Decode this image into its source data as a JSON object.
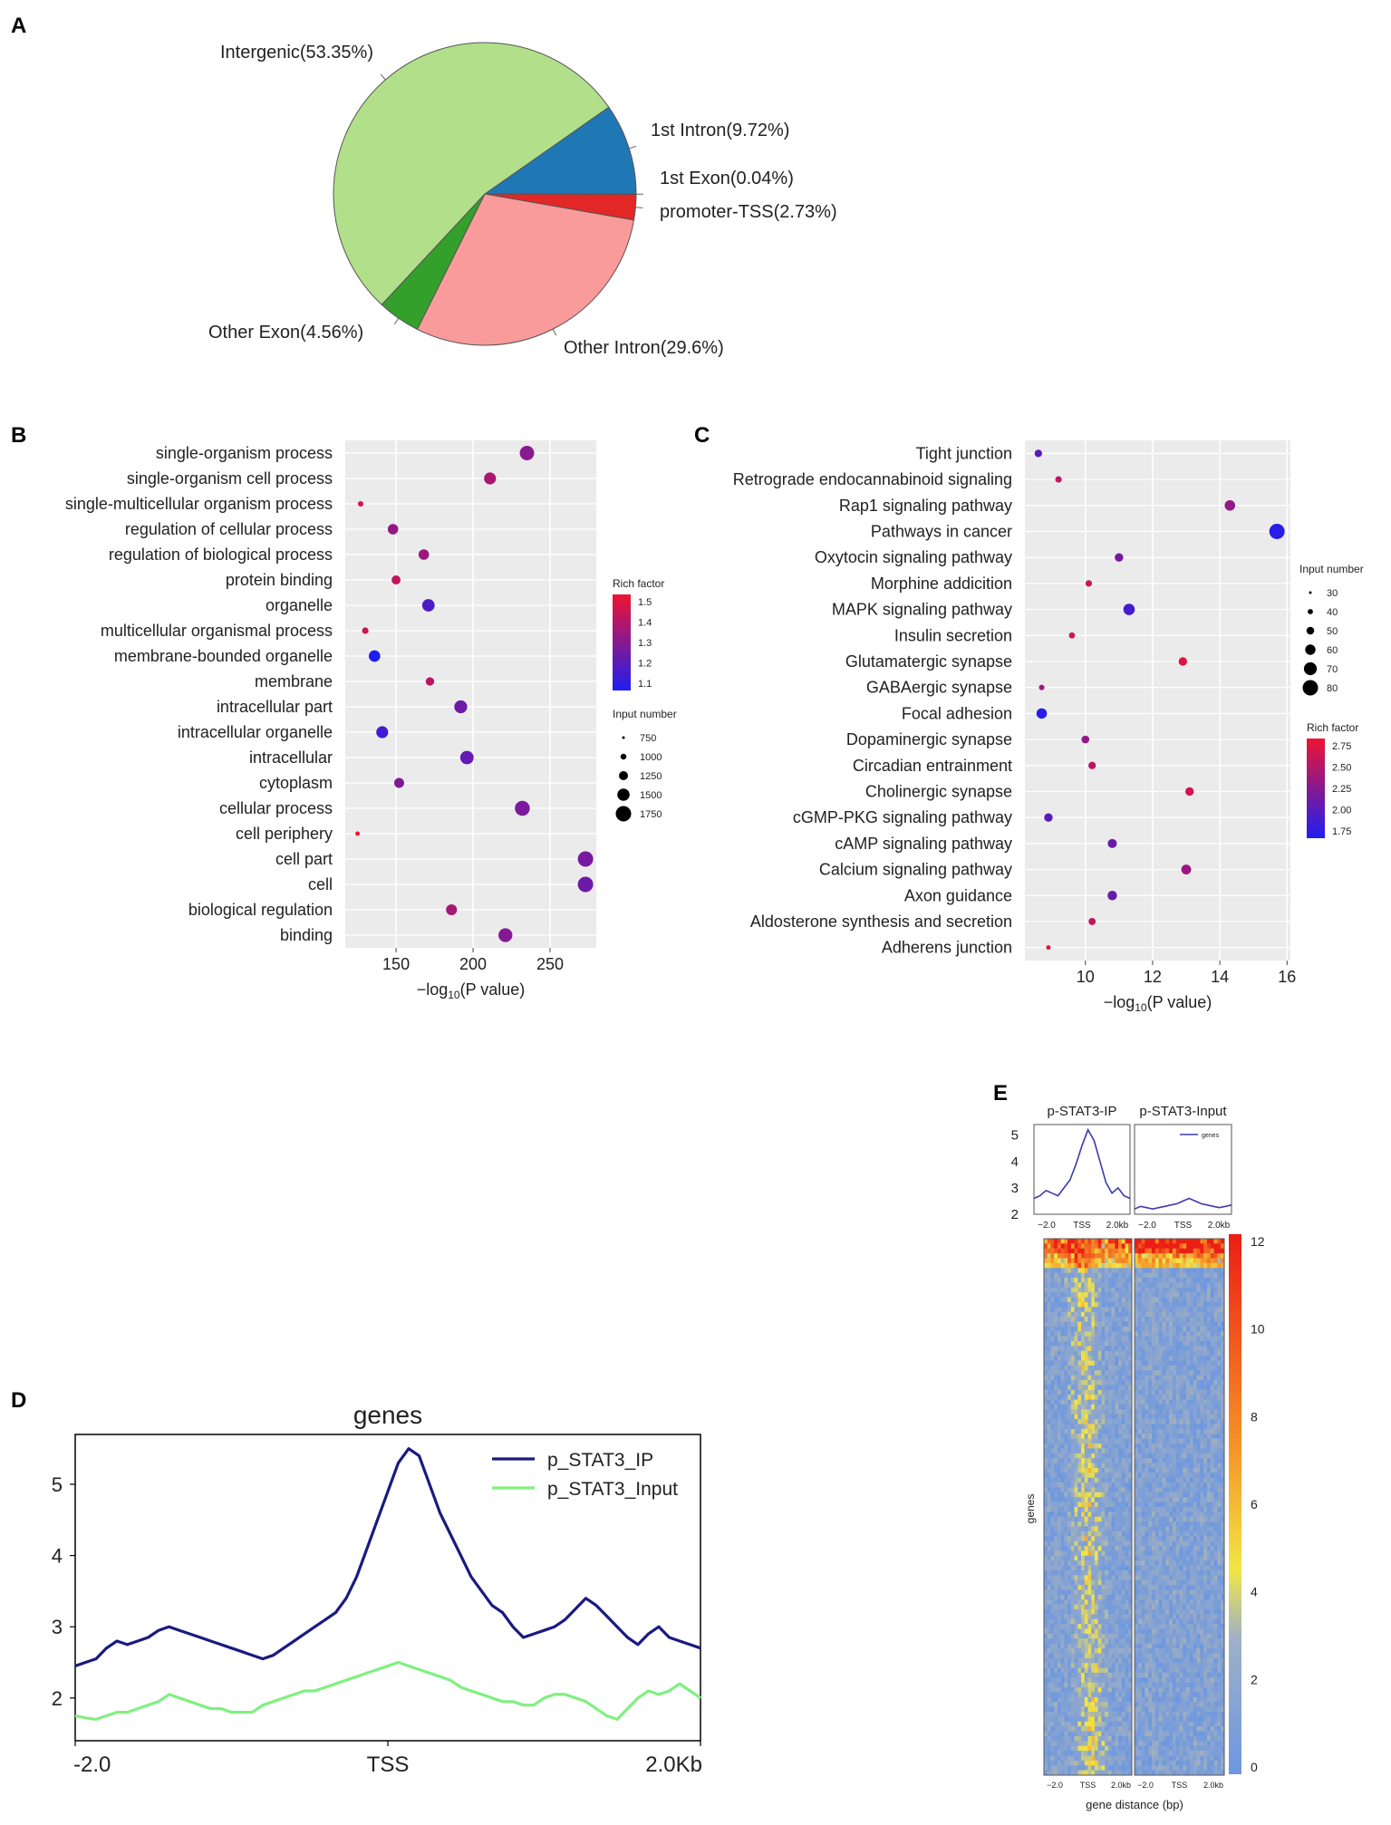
{
  "panels": {
    "a": "A",
    "b": "B",
    "c": "C",
    "d": "D",
    "e": "E"
  },
  "chart_data": [
    {
      "id": "A",
      "type": "pie",
      "title": "",
      "slices": [
        {
          "label": "1st Intron(9.72%)",
          "value": 9.72,
          "color": "#1f77b4"
        },
        {
          "label": "1st Exon(0.04%)",
          "value": 0.04,
          "color": "#9467bd"
        },
        {
          "label": "promoter-TSS(2.73%)",
          "value": 2.73,
          "color": "#e32626"
        },
        {
          "label": "Other Intron(29.6%)",
          "value": 29.6,
          "color": "#f89b9a"
        },
        {
          "label": "Other Exon(4.56%)",
          "value": 4.56,
          "color": "#33a02c"
        },
        {
          "label": "Intergenic(53.35%)",
          "value": 53.35,
          "color": "#b2df8a"
        }
      ]
    },
    {
      "id": "B",
      "type": "scatter",
      "xlabel": "−log",
      "xlabel_sub": "10",
      "xlabel_tail": "(P value)",
      "xlim": [
        117,
        280
      ],
      "xticks": [
        150,
        200,
        250
      ],
      "categories": [
        "single-organism process",
        "single-organism cell process",
        "single-multicellular organism process",
        "regulation of cellular process",
        "regulation of biological process",
        "protein binding",
        "organelle",
        "multicellular organismal process",
        "membrane-bounded organelle",
        "membrane",
        "intracellular part",
        "intracellular organelle",
        "intracellular",
        "cytoplasm",
        "cellular process",
        "cell periphery",
        "cell part",
        "cell",
        "biological regulation",
        "binding"
      ],
      "x": [
        235,
        211,
        127,
        148,
        168,
        150,
        171,
        130,
        136,
        172,
        192,
        141,
        196,
        152,
        232,
        125,
        273,
        273,
        186,
        221
      ],
      "size": [
        1700,
        1450,
        800,
        1300,
        1300,
        1150,
        1500,
        900,
        1400,
        1100,
        1550,
        1450,
        1600,
        1250,
        1750,
        700,
        1800,
        1800,
        1350,
        1650
      ],
      "color": [
        1.28,
        1.35,
        1.45,
        1.3,
        1.32,
        1.4,
        1.15,
        1.42,
        1.05,
        1.38,
        1.22,
        1.12,
        1.2,
        1.26,
        1.25,
        1.5,
        1.24,
        1.22,
        1.34,
        1.27
      ],
      "legend_color": {
        "title": "Rich factor",
        "ticks": [
          "1.5",
          "1.4",
          "1.3",
          "1.2",
          "1.1"
        ],
        "min": 1.05,
        "max": 1.5
      },
      "legend_size": {
        "title": "Input number",
        "ticks": [
          "750",
          "1000",
          "1250",
          "1500",
          "1750"
        ]
      }
    },
    {
      "id": "C",
      "type": "scatter",
      "xlabel": "−log",
      "xlabel_sub": "10",
      "xlabel_tail": "(P value)",
      "xlim": [
        8.2,
        16.1
      ],
      "xticks": [
        10,
        12,
        14,
        16
      ],
      "categories": [
        "Tight junction",
        "Retrograde endocannabinoid signaling",
        "Rap1 signaling pathway",
        "Pathways in cancer",
        "Oxytocin signaling pathway",
        "Morphine addicition",
        "MAPK signaling pathway",
        "Insulin secretion",
        "Glutamatergic synapse",
        "GABAergic synapse",
        "Focal adhesion",
        "Dopaminergic synapse",
        "Circadian entrainment",
        "Cholinergic synapse",
        "cGMP-PKG signaling pathway",
        "cAMP signaling pathway",
        "Calcium signaling pathway",
        "Axon guidance",
        "Aldosterone synthesis and secretion",
        "Adherens junction"
      ],
      "x": [
        8.6,
        9.2,
        14.3,
        15.7,
        11.0,
        10.1,
        11.3,
        9.6,
        12.9,
        8.7,
        8.7,
        10.0,
        10.2,
        13.1,
        8.9,
        10.8,
        13.0,
        10.8,
        10.2,
        8.9
      ],
      "size": [
        40,
        35,
        55,
        80,
        45,
        35,
        60,
        33,
        45,
        30,
        55,
        42,
        40,
        45,
        45,
        48,
        52,
        50,
        38,
        25
      ],
      "color": [
        2.0,
        2.55,
        2.3,
        1.75,
        2.15,
        2.6,
        1.9,
        2.6,
        2.7,
        2.4,
        1.75,
        2.3,
        2.5,
        2.65,
        2.0,
        2.1,
        2.35,
        2.1,
        2.55,
        2.75
      ],
      "legend_color": {
        "title": "Rich factor",
        "ticks": [
          "2.75",
          "2.50",
          "2.25",
          "2.00",
          "1.75"
        ],
        "min": 1.7,
        "max": 2.8
      },
      "legend_size": {
        "title": "Input number",
        "ticks": [
          "30",
          "40",
          "50",
          "60",
          "70",
          "80"
        ]
      }
    },
    {
      "id": "D",
      "type": "line",
      "title": "genes",
      "x_range": [
        -2000,
        2000
      ],
      "ylim": [
        1.4,
        5.7
      ],
      "yticks": [
        "2",
        "3",
        "4",
        "5"
      ],
      "xticks": [
        "-2.0",
        "TSS",
        "2.0Kb"
      ],
      "series": [
        {
          "name": "p_STAT3_IP",
          "color": "#1a1a80",
          "values": [
            2.45,
            2.5,
            2.55,
            2.7,
            2.8,
            2.75,
            2.8,
            2.85,
            2.95,
            3.0,
            2.95,
            2.9,
            2.85,
            2.8,
            2.75,
            2.7,
            2.65,
            2.6,
            2.55,
            2.6,
            2.7,
            2.8,
            2.9,
            3.0,
            3.1,
            3.2,
            3.4,
            3.7,
            4.1,
            4.5,
            4.9,
            5.3,
            5.5,
            5.4,
            5.0,
            4.6,
            4.3,
            4.0,
            3.7,
            3.5,
            3.3,
            3.2,
            3.0,
            2.85,
            2.9,
            2.95,
            3.0,
            3.1,
            3.25,
            3.4,
            3.3,
            3.15,
            3.0,
            2.85,
            2.75,
            2.9,
            3.0,
            2.85,
            2.8,
            2.75,
            2.7
          ]
        },
        {
          "name": "p_STAT3_Input",
          "color": "#80f080",
          "values": [
            1.75,
            1.72,
            1.7,
            1.75,
            1.8,
            1.8,
            1.85,
            1.9,
            1.95,
            2.05,
            2.0,
            1.95,
            1.9,
            1.85,
            1.85,
            1.8,
            1.8,
            1.8,
            1.9,
            1.95,
            2.0,
            2.05,
            2.1,
            2.1,
            2.15,
            2.2,
            2.25,
            2.3,
            2.35,
            2.4,
            2.45,
            2.5,
            2.45,
            2.4,
            2.35,
            2.3,
            2.25,
            2.15,
            2.1,
            2.05,
            2.0,
            1.95,
            1.95,
            1.9,
            1.9,
            2.0,
            2.05,
            2.05,
            2.0,
            1.95,
            1.85,
            1.75,
            1.7,
            1.85,
            2.0,
            2.1,
            2.05,
            2.1,
            2.2,
            2.1,
            2.0
          ]
        }
      ]
    },
    {
      "id": "E",
      "type": "heatmap",
      "profile_titles": [
        "p-STAT3-IP",
        "p-STAT3-Input"
      ],
      "profile_yticks": [
        "5",
        "4",
        "3",
        "2"
      ],
      "profile_xticks": [
        "−2.0",
        "TSS",
        "2.0kb"
      ],
      "profile_legend": "genes",
      "profile_series": [
        {
          "name": "p-STAT3-IP",
          "values": [
            2.6,
            2.7,
            2.9,
            2.8,
            2.7,
            3.0,
            3.3,
            3.9,
            4.6,
            5.2,
            4.8,
            4.0,
            3.2,
            2.8,
            3.0,
            2.7,
            2.6
          ]
        },
        {
          "name": "p-STAT3-Input",
          "values": [
            2.2,
            2.3,
            2.25,
            2.2,
            2.25,
            2.3,
            2.35,
            2.4,
            2.5,
            2.6,
            2.5,
            2.4,
            2.35,
            2.3,
            2.25,
            2.3,
            2.35
          ]
        }
      ],
      "ylabel": "genes",
      "xlabel": "gene distance (bp)",
      "heat_xticks": [
        "−2.0",
        "TSS",
        "2.0kb"
      ],
      "colorbar_ticks": [
        "12",
        "10",
        "8",
        "6",
        "4",
        "2",
        "0"
      ],
      "color_range": [
        0,
        12
      ]
    }
  ]
}
